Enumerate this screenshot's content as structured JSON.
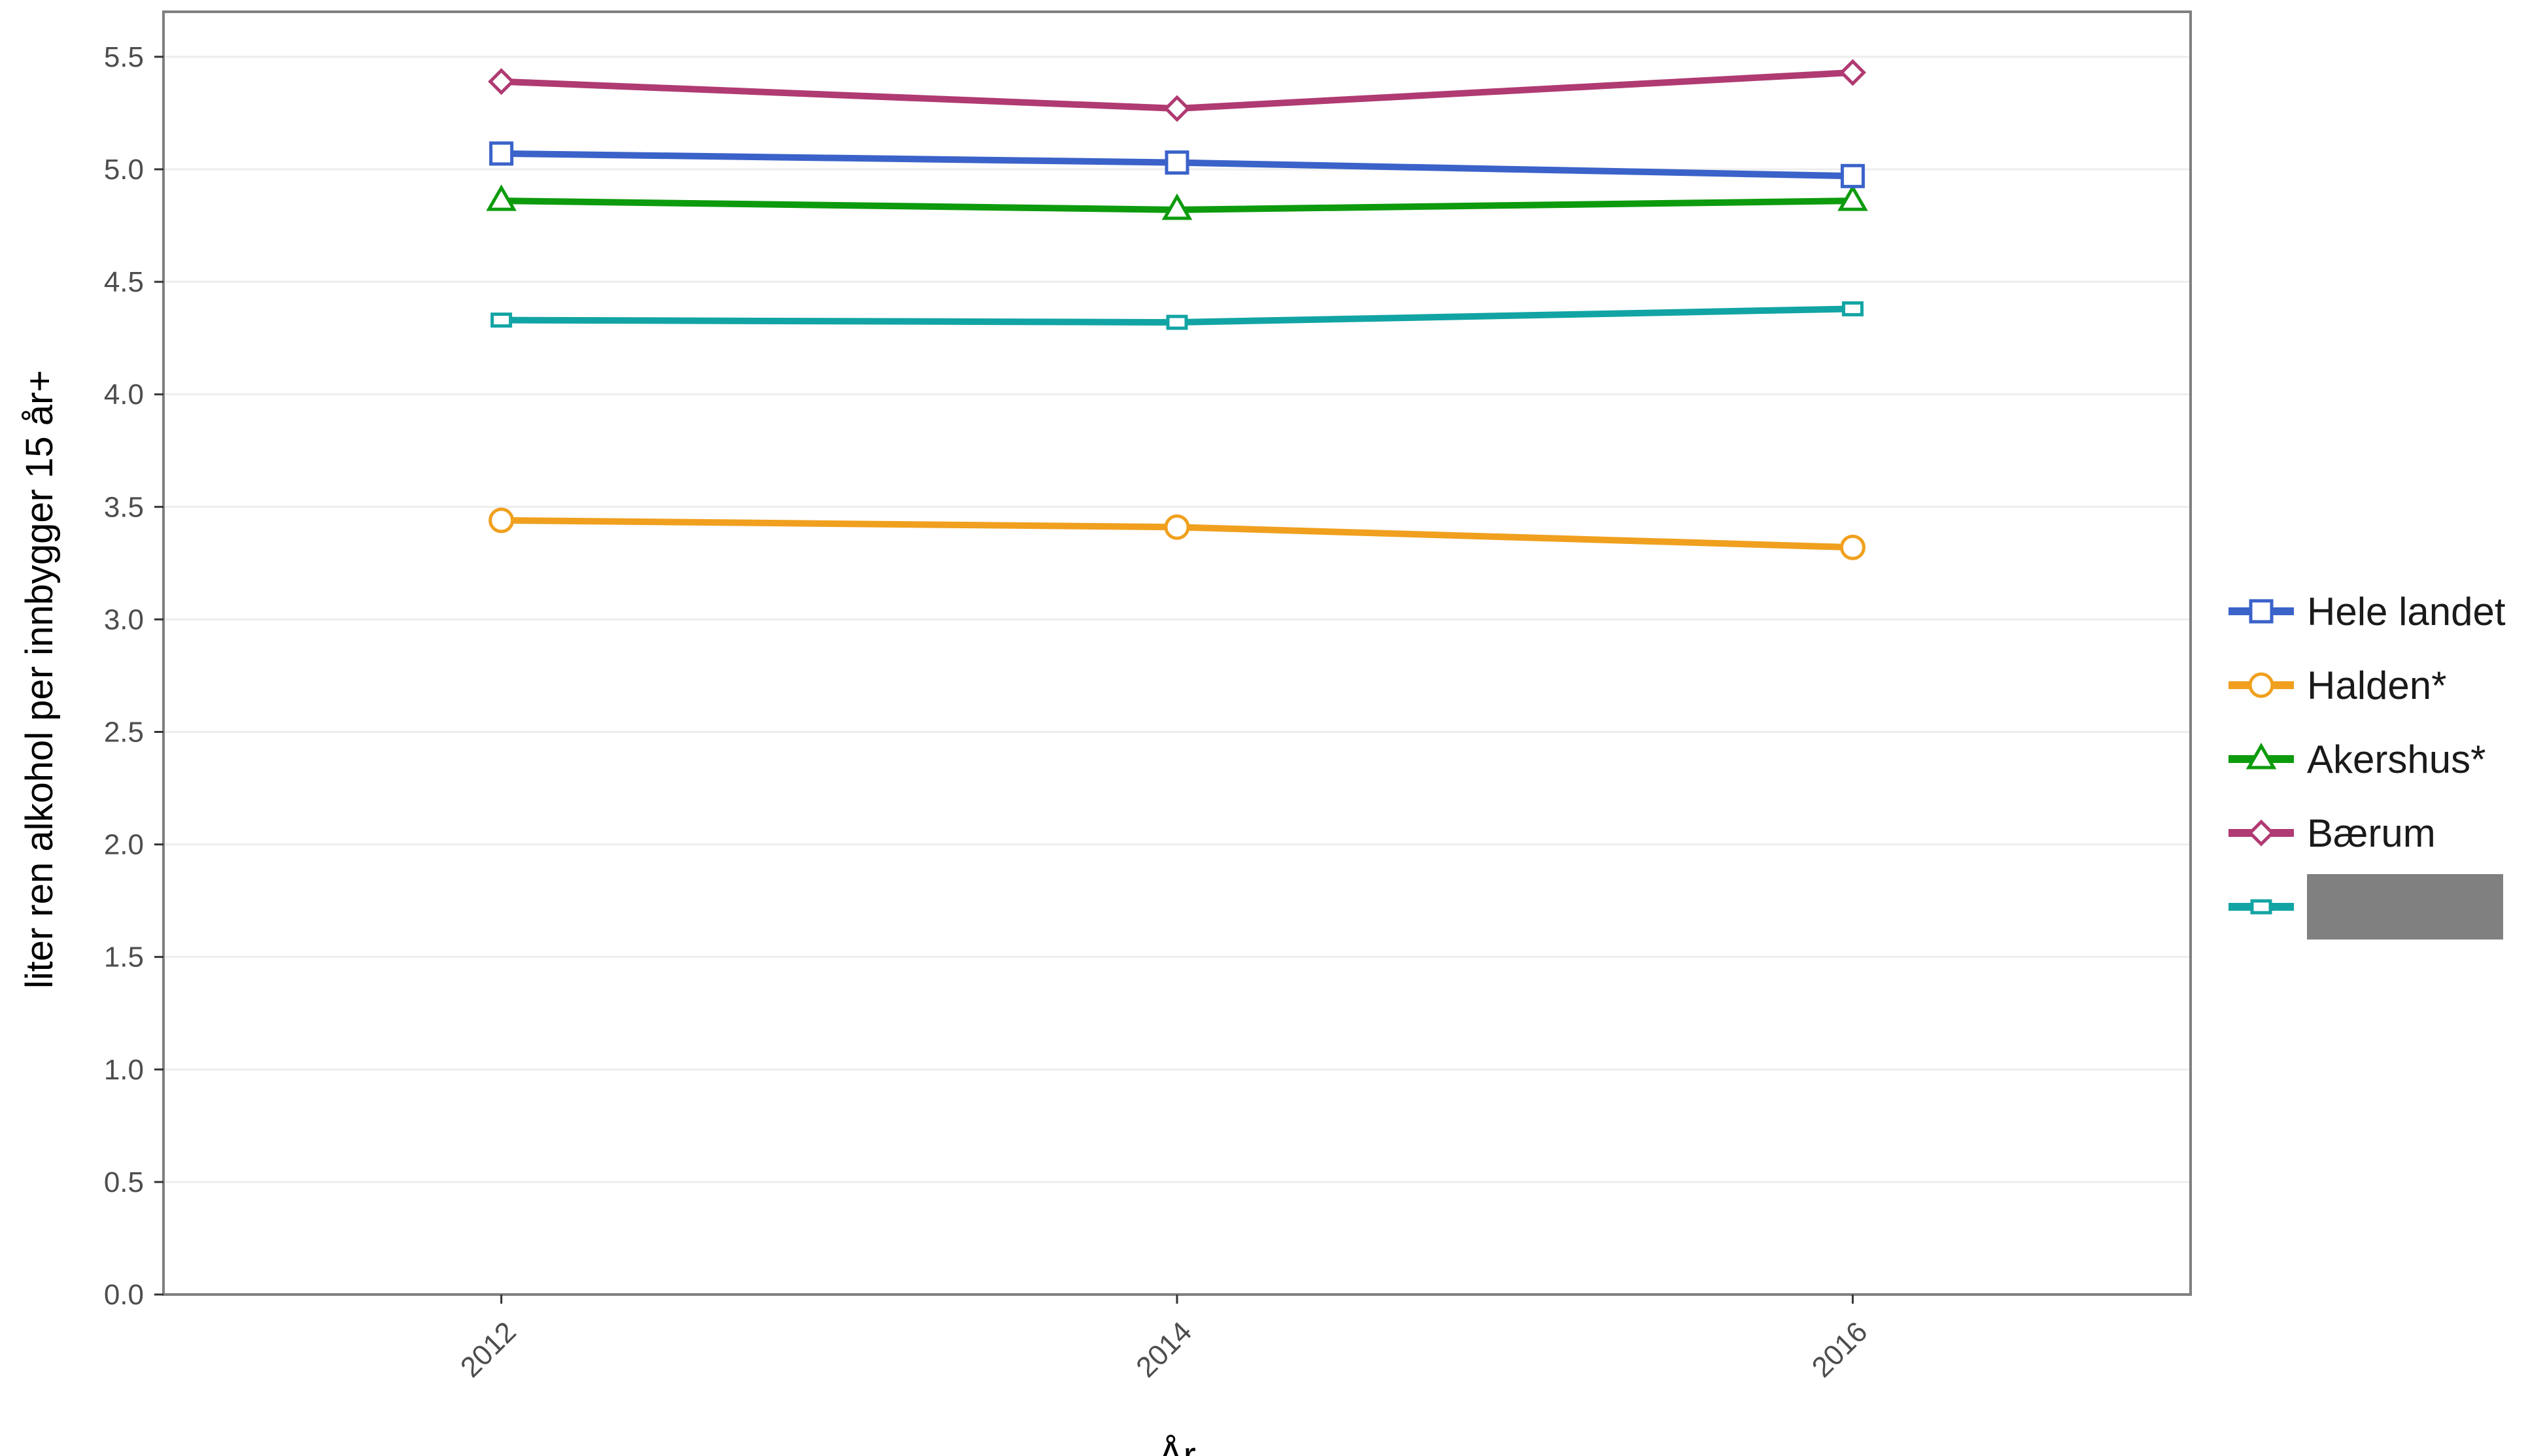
{
  "chart_data": {
    "type": "line",
    "title": "",
    "xlabel": "År",
    "ylabel": "liter ren alkohol per innbygger 15 år+",
    "categories": [
      "2012",
      "2014",
      "2016"
    ],
    "xlim": [
      2011,
      2017
    ],
    "ylim": [
      0,
      5.7
    ],
    "yticks": [
      0.0,
      0.5,
      1.0,
      1.5,
      2.0,
      2.5,
      3.0,
      3.5,
      4.0,
      4.5,
      5.0,
      5.5
    ],
    "ytick_labels": [
      "0.0",
      "0.5",
      "1.0",
      "1.5",
      "2.0",
      "2.5",
      "3.0",
      "3.5",
      "4.0",
      "4.5",
      "5.0",
      "5.5"
    ],
    "grid": true,
    "legend_position": "right",
    "series": [
      {
        "name": "Hele landet",
        "color": "#3a62c9",
        "marker": "square",
        "values": [
          5.07,
          5.03,
          4.97
        ]
      },
      {
        "name": "Halden*",
        "color": "#f0a01e",
        "marker": "circle",
        "values": [
          3.44,
          3.41,
          3.32
        ]
      },
      {
        "name": "Akershus*",
        "color": "#0d9b0d",
        "marker": "triangle",
        "values": [
          4.86,
          4.82,
          4.86
        ]
      },
      {
        "name": "Bærum",
        "color": "#b03a72",
        "marker": "diamond",
        "values": [
          5.39,
          5.27,
          5.43
        ]
      },
      {
        "name": "",
        "color": "#12a4a4",
        "marker": "small-square",
        "values": [
          4.33,
          4.32,
          4.38
        ],
        "legend_label_redacted": true
      }
    ]
  }
}
